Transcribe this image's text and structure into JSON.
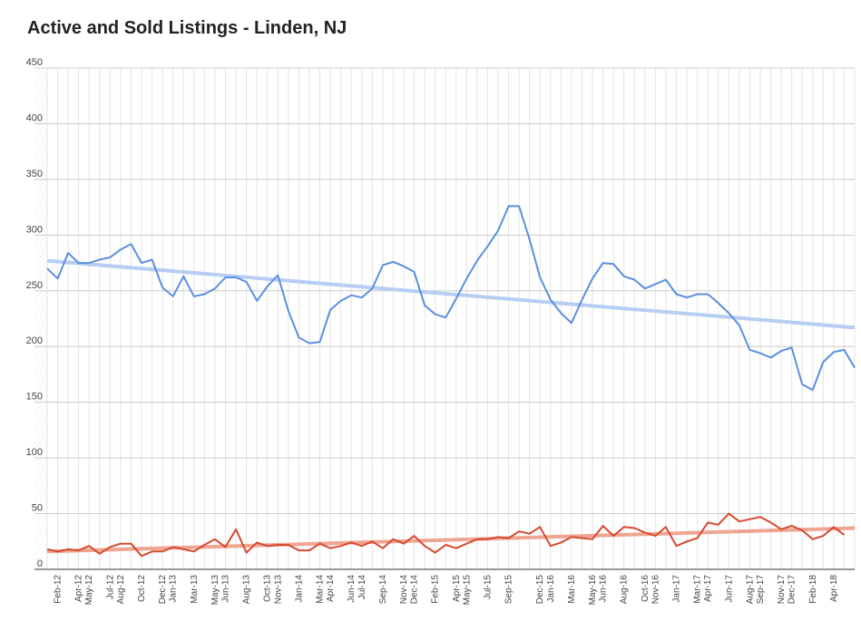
{
  "chart_data": {
    "type": "line",
    "title": "Active and Sold Listings - Linden, NJ",
    "xlabel": "",
    "ylabel": "",
    "ylim": [
      0,
      450
    ],
    "yticks": [
      0,
      50,
      100,
      150,
      200,
      250,
      300,
      350,
      400,
      450
    ],
    "grid": true,
    "legend": "none",
    "x_tick_labels": [
      "Feb-12",
      "Apr-12",
      "May-12",
      "Jul-12",
      "Aug-12",
      "Oct-12",
      "Dec-12",
      "Jan-13",
      "Mar-13",
      "May-13",
      "Jun-13",
      "Aug-13",
      "Oct-13",
      "Nov-13",
      "Jan-14",
      "Mar-14",
      "Apr-14",
      "Jun-14",
      "Jul-14",
      "Sep-14",
      "Nov-14",
      "Dec-14",
      "Feb-15",
      "Apr-15",
      "May-15",
      "Jul-15",
      "Sep-15",
      "Dec-15",
      "Jan-16",
      "Mar-16",
      "May-16",
      "Jun-16",
      "Aug-16",
      "Oct-16",
      "Nov-16",
      "Jan-17",
      "Mar-17",
      "Apr-17",
      "Jun-17",
      "Aug-17",
      "Sep-17",
      "Nov-17",
      "Dec-17",
      "Feb-18",
      "Apr-18"
    ],
    "x_tick_index": [
      1,
      3,
      4,
      6,
      7,
      9,
      11,
      12,
      14,
      16,
      17,
      19,
      21,
      22,
      24,
      26,
      27,
      29,
      30,
      32,
      34,
      35,
      37,
      39,
      40,
      42,
      44,
      47,
      48,
      50,
      52,
      53,
      55,
      57,
      58,
      60,
      62,
      63,
      65,
      67,
      68,
      70,
      71,
      73,
      75
    ],
    "series": [
      {
        "color": "#5b8fe0",
        "values": [
          270,
          261,
          284,
          275,
          275,
          278,
          280,
          287,
          292,
          275,
          278,
          253,
          245,
          263,
          245,
          247,
          252,
          262,
          262,
          258,
          241,
          254,
          264,
          232,
          208,
          203,
          204,
          233,
          241,
          246,
          244,
          252,
          273,
          276,
          272,
          267,
          237,
          229,
          226,
          243,
          261,
          277,
          290,
          304,
          326,
          326,
          296,
          262,
          242,
          230,
          221,
          242,
          261,
          275,
          274,
          263,
          260,
          252,
          256,
          260,
          247,
          244,
          247,
          247,
          239,
          230,
          219,
          197,
          194,
          190,
          196,
          199,
          166,
          161,
          186,
          195,
          197,
          181
        ],
        "trend": [
          277,
          217
        ],
        "trend_color": "#b7cdf3"
      },
      {
        "color": "#d64a30",
        "values": [
          18,
          16,
          18,
          17,
          21,
          14,
          20,
          23,
          23,
          12,
          16,
          16,
          20,
          18,
          16,
          22,
          27,
          20,
          36,
          15,
          24,
          21,
          22,
          22,
          17,
          17,
          23,
          19,
          21,
          24,
          21,
          25,
          19,
          27,
          23,
          30,
          21,
          15,
          22,
          19,
          23,
          27,
          27,
          29,
          28,
          34,
          32,
          38,
          21,
          24,
          29,
          28,
          27,
          39,
          30,
          38,
          37,
          33,
          30,
          38,
          21,
          25,
          28,
          42,
          40,
          50,
          43,
          45,
          47,
          42,
          36,
          39,
          35,
          27,
          30,
          38,
          31
        ],
        "trend": [
          16,
          37
        ],
        "trend_color": "#eea592"
      }
    ]
  }
}
